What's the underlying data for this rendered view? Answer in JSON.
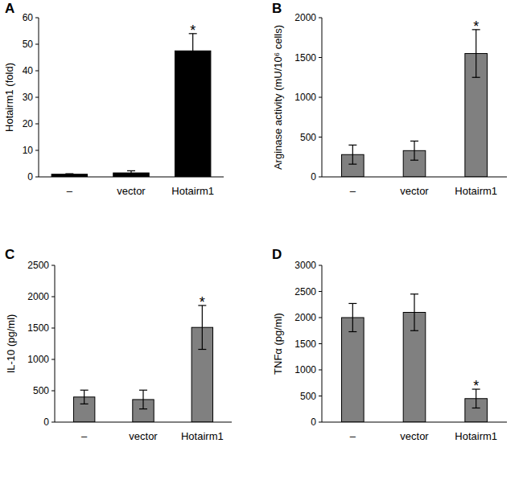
{
  "chart_data": [
    {
      "type": "bar",
      "title": "A",
      "y_label": "Hotairm1 (fold)",
      "categories": [
        "–",
        "vector",
        "Hotairm1"
      ],
      "values": [
        1,
        1.5,
        47.5
      ],
      "errors": [
        0.2,
        0.8,
        6.5
      ],
      "color": "#000000",
      "ylim": [
        0,
        60
      ],
      "yticks": [
        0,
        10,
        20,
        30,
        40,
        50,
        60
      ],
      "grid": false,
      "annotations": [
        {
          "text": "*",
          "index": 2
        }
      ]
    },
    {
      "type": "bar",
      "title": "B",
      "y_label": "Arginase activity (mU/10⁶ cells)",
      "categories": [
        "–",
        "vector",
        "Hotairm1"
      ],
      "values": [
        280,
        330,
        1550
      ],
      "errors": [
        120,
        120,
        300
      ],
      "color": "#808080",
      "ylim": [
        0,
        2000
      ],
      "yticks": [
        0,
        500,
        1000,
        1500,
        2000
      ],
      "grid": false,
      "annotations": [
        {
          "text": "*",
          "index": 2
        }
      ]
    },
    {
      "type": "bar",
      "title": "C",
      "y_label": "IL-10 (pg/ml)",
      "categories": [
        "–",
        "vector",
        "Hotairm1"
      ],
      "values": [
        400,
        360,
        1510
      ],
      "errors": [
        110,
        150,
        350
      ],
      "color": "#808080",
      "ylim": [
        0,
        2500
      ],
      "yticks": [
        0,
        500,
        1000,
        1500,
        2000,
        2500
      ],
      "grid": false,
      "annotations": [
        {
          "text": "*",
          "index": 2
        }
      ]
    },
    {
      "type": "bar",
      "title": "D",
      "y_label": "TNFα (pg/ml)",
      "categories": [
        "–",
        "vector",
        "Hotairm1"
      ],
      "values": [
        2000,
        2100,
        450
      ],
      "errors": [
        270,
        350,
        180
      ],
      "color": "#808080",
      "ylim": [
        0,
        3000
      ],
      "yticks": [
        0,
        500,
        1000,
        1500,
        2000,
        2500,
        3000
      ],
      "grid": false,
      "annotations": [
        {
          "text": "*",
          "index": 2
        }
      ]
    }
  ]
}
